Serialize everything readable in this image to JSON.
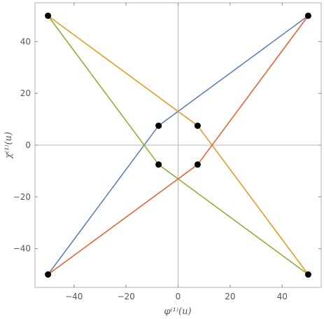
{
  "chart_data": {
    "type": "line",
    "title": "",
    "xlabel": "φ⁽¹⁾(u)",
    "ylabel": "χ⁽¹⁾(u)",
    "xlim": [
      -55,
      55
    ],
    "ylim": [
      -55,
      55
    ],
    "xticks": [
      -40,
      -20,
      0,
      20,
      40
    ],
    "yticks": [
      -40,
      -20,
      0,
      20,
      40
    ],
    "xtick_labels": [
      "−40",
      "−20",
      "0",
      "20",
      "40"
    ],
    "ytick_labels": [
      "−40",
      "−20",
      "0",
      "20",
      "40"
    ],
    "grid": false,
    "zero_axes": true,
    "series": [
      {
        "color": "#5e81b5",
        "x": [
          -50,
          -7.5,
          50
        ],
        "y": [
          -50,
          7.5,
          50
        ]
      },
      {
        "color": "#e19c24",
        "x": [
          -50,
          7.5,
          50
        ],
        "y": [
          50,
          7.5,
          -50
        ]
      },
      {
        "color": "#8fb032",
        "x": [
          -50,
          -7.5,
          50
        ],
        "y": [
          50,
          -7.5,
          -50
        ]
      },
      {
        "color": "#eb6235",
        "x": [
          -50,
          7.5,
          50
        ],
        "y": [
          -50,
          -7.5,
          50
        ]
      }
    ],
    "points": {
      "color": "#000000",
      "x": [
        -50,
        50,
        -50,
        50,
        -7.5,
        7.5,
        -7.5,
        7.5
      ],
      "y": [
        50,
        50,
        -50,
        -50,
        7.5,
        7.5,
        -7.5,
        -7.5
      ]
    }
  }
}
